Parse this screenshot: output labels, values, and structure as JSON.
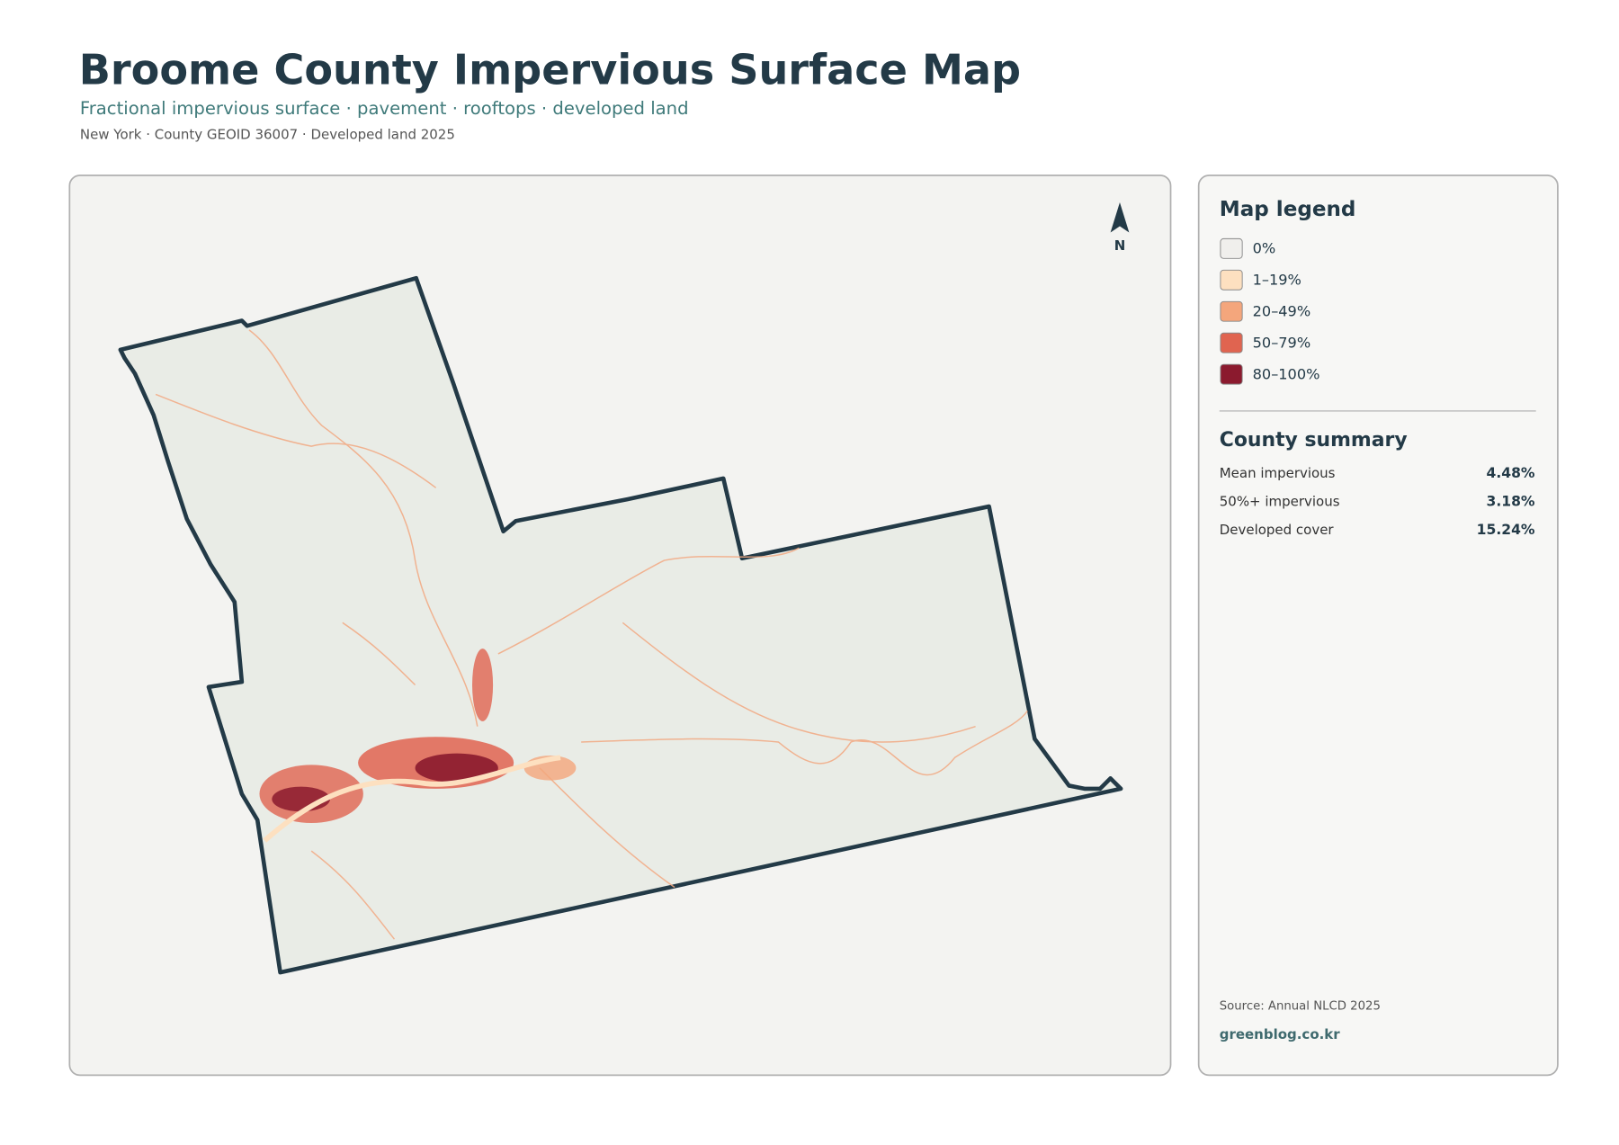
{
  "header": {
    "title": "Broome County Impervious Surface Map",
    "subtitle": "Fractional impervious surface · pavement · rooftops · developed land",
    "meta": "New York · County GEOID 36007 · Developed land 2025"
  },
  "map": {
    "north_label": "N"
  },
  "legend": {
    "title": "Map legend",
    "items": [
      {
        "label": "0%",
        "color": "#f0efec"
      },
      {
        "label": "1–19%",
        "color": "#fde0c0"
      },
      {
        "label": "20–49%",
        "color": "#f4a67c"
      },
      {
        "label": "50–79%",
        "color": "#e06450"
      },
      {
        "label": "80–100%",
        "color": "#8b1a2e"
      }
    ]
  },
  "summary": {
    "title": "County summary",
    "rows": [
      [
        "Mean impervious",
        "4.48%"
      ],
      [
        "50%+ impervious",
        "3.18%"
      ],
      [
        "Developed cover",
        "15.24%"
      ]
    ]
  },
  "footer": {
    "source": "Source: Annual NLCD 2025",
    "site": "greenblog.co.kr"
  }
}
